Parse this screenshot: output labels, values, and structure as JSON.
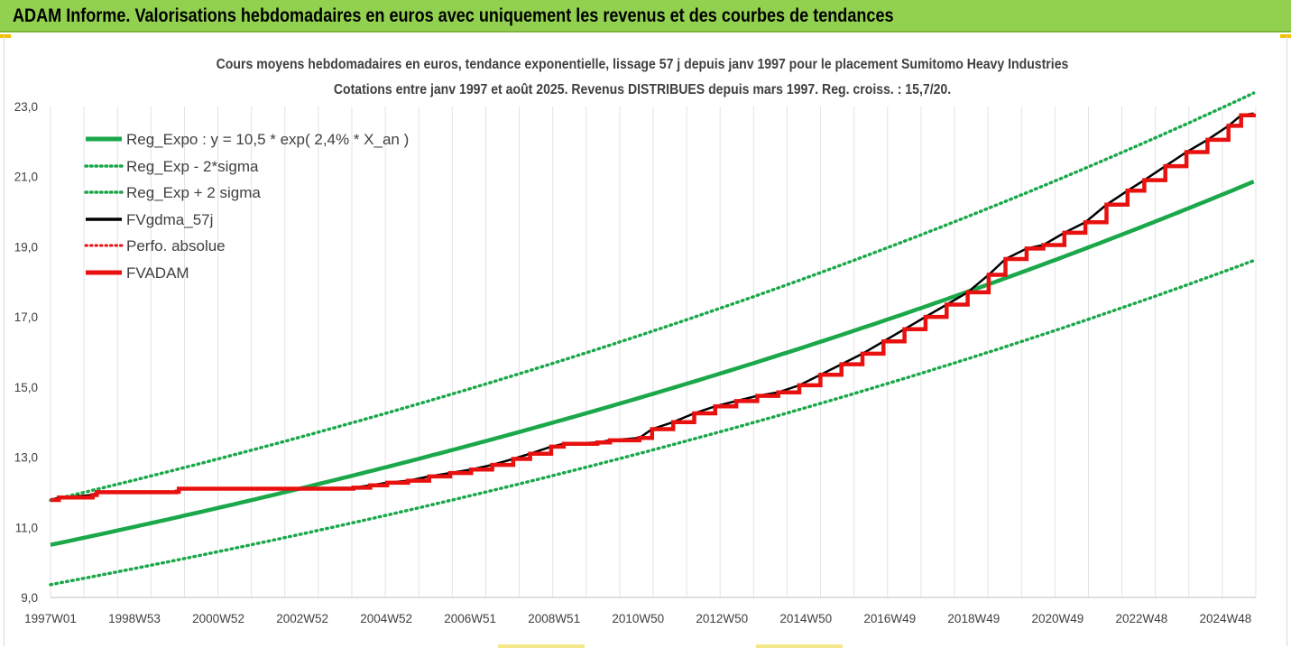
{
  "banner": {
    "title": "ADAM Informe. Valorisations hebdomadaires en euros avec uniquement les revenus et des courbes de tendances"
  },
  "colors": {
    "banner_bg": "#92d050",
    "trend_green": "#1aa84a",
    "fvadam_red": "#e8110f",
    "fvgdma_black": "#000000",
    "grid": "#d9d9d9"
  },
  "chart_data": {
    "type": "line",
    "title_lines": [
      "Cours moyens hebdomadaires en euros, tendance exponentielle, lissage 57 j depuis janv 1997 pour le placement Sumitomo Heavy Industries",
      "Cotations entre janv 1997 et août 2025. Revenus DISTRIBUES depuis mars 1997. Reg. croiss. : 15,7/20."
    ],
    "xlabel": "",
    "ylabel": "",
    "x_ticks": [
      "1997W01",
      "1998W53",
      "2000W52",
      "2002W52",
      "2004W52",
      "2006W51",
      "2008W51",
      "2010W50",
      "2012W50",
      "2014W50",
      "2016W49",
      "2018W49",
      "2020W49",
      "2022W48",
      "2024W48"
    ],
    "x_range": [
      1997.0,
      2025.65
    ],
    "y_ticks": [
      "9,0",
      "11,0",
      "13,0",
      "15,0",
      "17,0",
      "19,0",
      "21,0",
      "23,0"
    ],
    "ylim": [
      9.0,
      23.0
    ],
    "grid": "vertical",
    "legend_position": "top-left",
    "regression": {
      "a": 10.5,
      "rate": 0.024,
      "two_sigma_factor": 1.121
    },
    "series": [
      {
        "name": "Reg_Expo : y = 10,5 * exp( 2,4% *  X_an )",
        "style": "solid-thick",
        "color": "#1aa84a"
      },
      {
        "name": "Reg_Exp - 2*sigma",
        "style": "dotted",
        "color": "#1aa84a"
      },
      {
        "name": "Reg_Exp + 2 sigma",
        "style": "dotted",
        "color": "#1aa84a"
      },
      {
        "name": "FVgdma_57j",
        "style": "solid",
        "color": "#000000"
      },
      {
        "name": "Perfo. absolue",
        "style": "dotted",
        "color": "#e8110f"
      },
      {
        "name": "FVADAM",
        "style": "solid-thick",
        "color": "#e8110f",
        "points": [
          [
            1997.0,
            11.78
          ],
          [
            1997.2,
            11.85
          ],
          [
            1998.0,
            11.92
          ],
          [
            1998.1,
            12.0
          ],
          [
            2000.0,
            12.02
          ],
          [
            2000.05,
            12.1
          ],
          [
            2004.2,
            12.13
          ],
          [
            2004.6,
            12.2
          ],
          [
            2005.0,
            12.27
          ],
          [
            2005.5,
            12.33
          ],
          [
            2006.0,
            12.45
          ],
          [
            2006.5,
            12.55
          ],
          [
            2007.0,
            12.65
          ],
          [
            2007.5,
            12.78
          ],
          [
            2008.0,
            12.95
          ],
          [
            2008.4,
            13.1
          ],
          [
            2008.9,
            13.3
          ],
          [
            2009.2,
            13.38
          ],
          [
            2010.0,
            13.42
          ],
          [
            2010.3,
            13.48
          ],
          [
            2011.0,
            13.55
          ],
          [
            2011.3,
            13.8
          ],
          [
            2011.8,
            14.0
          ],
          [
            2012.3,
            14.25
          ],
          [
            2012.8,
            14.45
          ],
          [
            2013.3,
            14.6
          ],
          [
            2013.8,
            14.75
          ],
          [
            2014.3,
            14.85
          ],
          [
            2014.8,
            15.05
          ],
          [
            2015.3,
            15.35
          ],
          [
            2015.8,
            15.65
          ],
          [
            2016.3,
            15.95
          ],
          [
            2016.8,
            16.3
          ],
          [
            2017.3,
            16.65
          ],
          [
            2017.8,
            17.0
          ],
          [
            2018.3,
            17.35
          ],
          [
            2018.8,
            17.7
          ],
          [
            2019.3,
            18.2
          ],
          [
            2019.7,
            18.65
          ],
          [
            2020.2,
            18.95
          ],
          [
            2020.6,
            19.05
          ],
          [
            2021.1,
            19.4
          ],
          [
            2021.6,
            19.7
          ],
          [
            2022.1,
            20.2
          ],
          [
            2022.6,
            20.6
          ],
          [
            2023.0,
            20.9
          ],
          [
            2023.5,
            21.3
          ],
          [
            2024.0,
            21.7
          ],
          [
            2024.5,
            22.05
          ],
          [
            2025.0,
            22.45
          ],
          [
            2025.3,
            22.75
          ],
          [
            2025.6,
            22.8
          ]
        ]
      }
    ]
  }
}
